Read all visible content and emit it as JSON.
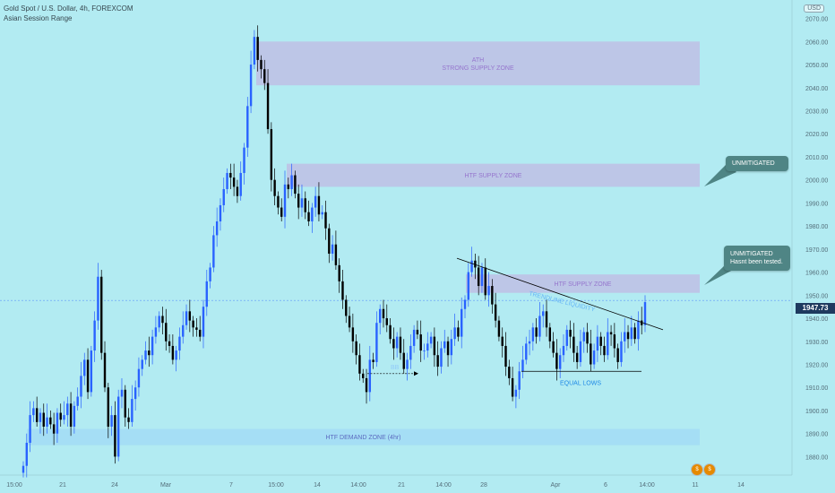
{
  "header": {
    "title": "Gold Spot / U.S. Dollar, 4h, FOREXCOM",
    "subtitle": "Asian Session Range",
    "currency": "USD"
  },
  "price_tag": "1947.73",
  "callouts": [
    {
      "title": "UNMITIGATED",
      "text": ""
    },
    {
      "title": "UNMITIGATED",
      "text": "Hasnt been tested."
    }
  ],
  "chart_data": {
    "type": "candlestick",
    "ylim": [
      1872,
      2078
    ],
    "y_ticks": [
      "1880.00",
      "1890.00",
      "1900.00",
      "1910.00",
      "1920.00",
      "1930.00",
      "1940.00",
      "1950.00",
      "1960.00",
      "1970.00",
      "1980.00",
      "1990.00",
      "2000.00",
      "2010.00",
      "2020.00",
      "2030.00",
      "2040.00",
      "2050.00",
      "2060.00",
      "2070.00"
    ],
    "x_ticks": [
      "15:00",
      "21",
      "24",
      "Mar",
      "7",
      "15:00",
      "14",
      "14:00",
      "21",
      "14:00",
      "28",
      "Apr",
      "6",
      "14:00",
      "11",
      "14"
    ],
    "current_price": 1947.73,
    "zones": [
      {
        "label": "ATH\nSTRONG SUPPLY ZONE",
        "low": 2041,
        "high": 2060
      },
      {
        "label": "HTF SUPPLY ZONE",
        "low": 1997,
        "high": 2007
      },
      {
        "label": "HTF SUPPLY ZONE",
        "low": 1951,
        "high": 1959
      },
      {
        "label": "HTF DEMAND ZONE (4hr)",
        "low": 1885,
        "high": 1892
      }
    ],
    "annotations": [
      "EQUAL LOWS",
      "TRENDLINE LIQUIDITY",
      "BB"
    ],
    "closes": [
      1876,
      1886,
      1898,
      1901,
      1895,
      1899,
      1893,
      1897,
      1894,
      1890,
      1899,
      1896,
      1898,
      1903,
      1893,
      1902,
      1906,
      1915,
      1922,
      1908,
      1926,
      1939,
      1958,
      1925,
      1910,
      1893,
      1898,
      1880,
      1906,
      1909,
      1897,
      1895,
      1905,
      1910,
      1918,
      1922,
      1926,
      1924,
      1932,
      1936,
      1941,
      1938,
      1930,
      1928,
      1922,
      1926,
      1932,
      1937,
      1943,
      1939,
      1936,
      1935,
      1932,
      1945,
      1956,
      1962,
      1976,
      1982,
      1989,
      1996,
      2003,
      2001,
      1997,
      1993,
      2003,
      2014,
      2032,
      2050,
      2062,
      2052,
      2048,
      2042,
      2022,
      2000,
      1993,
      1988,
      1984,
      1998,
      1996,
      2002,
      1994,
      1988,
      1992,
      1986,
      1982,
      1988,
      1993,
      1985,
      1986,
      1979,
      1968,
      1972,
      1963,
      1956,
      1948,
      1941,
      1936,
      1930,
      1924,
      1916,
      1914,
      1908,
      1922,
      1921,
      1938,
      1944,
      1940,
      1937,
      1931,
      1927,
      1932,
      1925,
      1918,
      1922,
      1928,
      1935,
      1933,
      1926,
      1926,
      1929,
      1932,
      1924,
      1919,
      1927,
      1930,
      1924,
      1931,
      1936,
      1932,
      1944,
      1948,
      1960,
      1965,
      1962,
      1954,
      1962,
      1950,
      1954,
      1946,
      1939,
      1932,
      1928,
      1919,
      1914,
      1906,
      1909,
      1917,
      1922,
      1929,
      1930,
      1936,
      1932,
      1941,
      1943,
      1936,
      1930,
      1925,
      1918,
      1924,
      1928,
      1935,
      1932,
      1925,
      1921,
      1930,
      1934,
      1929,
      1920,
      1926,
      1932,
      1928,
      1924,
      1934,
      1933,
      1927,
      1921,
      1930,
      1934,
      1931,
      1936,
      1931,
      1939,
      1937,
      1947
    ]
  }
}
